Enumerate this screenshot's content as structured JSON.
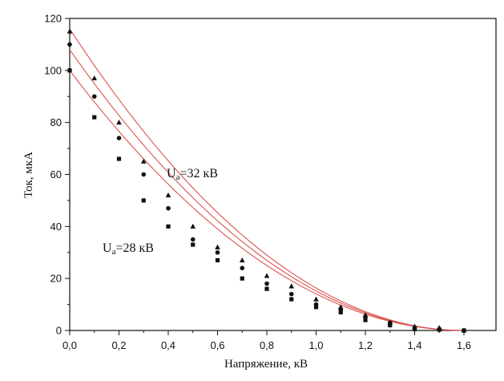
{
  "chart_data": {
    "type": "scatter",
    "xlabel": "Напряжение, кВ",
    "ylabel": "Ток, мкА",
    "xlim": [
      0.0,
      1.6
    ],
    "ylim": [
      0,
      120
    ],
    "x_ticks": [
      "0,0",
      "0,2",
      "0,4",
      "0,6",
      "0,8",
      "1,0",
      "1,2",
      "1,4",
      "1,6"
    ],
    "y_ticks": [
      "0",
      "20",
      "40",
      "60",
      "80",
      "100",
      "120"
    ],
    "grid": false,
    "fit_color": "#d9534f",
    "annotations": [
      {
        "main": "U",
        "sub": "a",
        "rest": "=32 кВ"
      },
      {
        "main": "U",
        "sub": "a",
        "rest": "=28 кВ"
      }
    ],
    "series": [
      {
        "marker": "triangle",
        "fit_start": 116,
        "points": [
          [
            0.0,
            115
          ],
          [
            0.1,
            97
          ],
          [
            0.2,
            80
          ],
          [
            0.3,
            65
          ],
          [
            0.4,
            52
          ],
          [
            0.5,
            40
          ],
          [
            0.6,
            32
          ],
          [
            0.7,
            27
          ],
          [
            0.8,
            21
          ],
          [
            0.9,
            17
          ],
          [
            1.0,
            12
          ],
          [
            1.1,
            9
          ],
          [
            1.2,
            6
          ],
          [
            1.3,
            3
          ],
          [
            1.4,
            1.5
          ],
          [
            1.5,
            1
          ],
          [
            1.6,
            0
          ]
        ]
      },
      {
        "marker": "circle",
        "fit_start": 108,
        "points": [
          [
            0.0,
            110
          ],
          [
            0.1,
            90
          ],
          [
            0.2,
            74
          ],
          [
            0.3,
            60
          ],
          [
            0.4,
            47
          ],
          [
            0.5,
            35
          ],
          [
            0.6,
            30
          ],
          [
            0.7,
            24
          ],
          [
            0.8,
            18
          ],
          [
            0.9,
            14
          ],
          [
            1.0,
            10
          ],
          [
            1.1,
            8
          ],
          [
            1.2,
            5
          ],
          [
            1.3,
            3
          ],
          [
            1.4,
            1
          ],
          [
            1.5,
            0.5
          ],
          [
            1.6,
            0
          ]
        ]
      },
      {
        "marker": "square",
        "fit_start": 100,
        "points": [
          [
            0.0,
            100
          ],
          [
            0.1,
            82
          ],
          [
            0.2,
            66
          ],
          [
            0.3,
            50
          ],
          [
            0.4,
            40
          ],
          [
            0.5,
            33
          ],
          [
            0.6,
            27
          ],
          [
            0.7,
            20
          ],
          [
            0.8,
            16
          ],
          [
            0.9,
            12
          ],
          [
            1.0,
            9
          ],
          [
            1.1,
            7
          ],
          [
            1.2,
            4
          ],
          [
            1.3,
            2
          ],
          [
            1.4,
            0.5
          ],
          [
            1.5,
            0.3
          ],
          [
            1.6,
            0
          ]
        ]
      }
    ]
  }
}
